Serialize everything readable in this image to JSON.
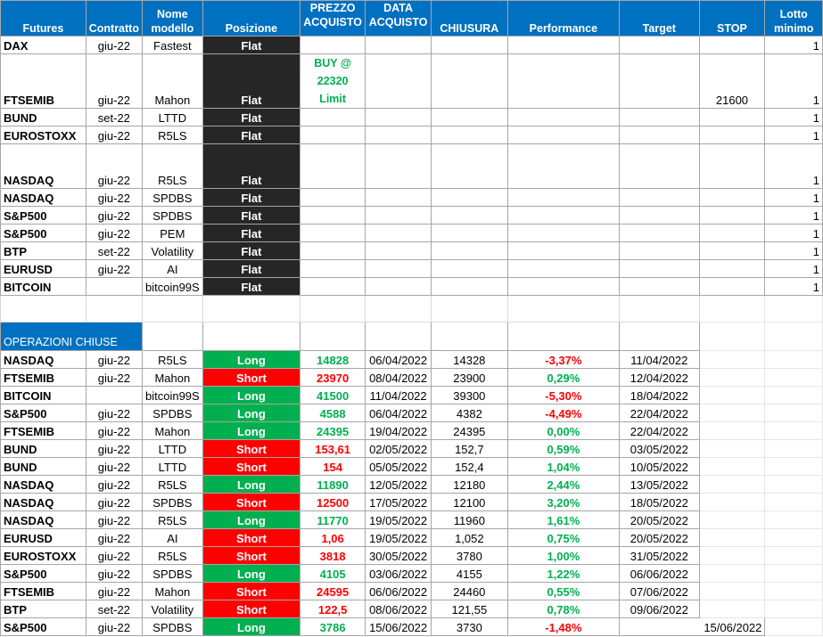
{
  "header": {
    "futures": "Futures",
    "contratto": "Contratto",
    "nome_modello": "Nome modello",
    "posizione": "Posizione",
    "prezzo_acquisto": "PREZZO ACQUISTO",
    "data_acquisto": "DATA ACQUISTO",
    "chiusura": "CHIUSURA",
    "performance": "Performance",
    "target": "Target",
    "stop": "STOP",
    "lotto_minimo": "Lotto minimo"
  },
  "open_positions": [
    {
      "future": "DAX",
      "contratto": "giu-22",
      "modello": "Fastest",
      "posizione": "Flat",
      "prezzo": "",
      "stop": "",
      "lotto": "1"
    },
    {
      "future": "FTSEMIB",
      "contratto": "giu-22",
      "modello": "Mahon",
      "posizione": "Flat",
      "prezzo": "BUY @ 22320 Limit",
      "stop": "21600",
      "lotto": "1"
    },
    {
      "future": "BUND",
      "contratto": "set-22",
      "modello": "LTTD",
      "posizione": "Flat",
      "prezzo": "",
      "stop": "",
      "lotto": "1"
    },
    {
      "future": "EUROSTOXX",
      "contratto": "giu-22",
      "modello": "R5LS",
      "posizione": "Flat",
      "prezzo": "",
      "stop": "",
      "lotto": "1"
    },
    {
      "future": "NASDAQ",
      "contratto": "giu-22",
      "modello": "R5LS",
      "posizione": "Flat",
      "prezzo": "",
      "stop": "",
      "lotto": "1"
    },
    {
      "future": "NASDAQ",
      "contratto": "giu-22",
      "modello": "SPDBS",
      "posizione": "Flat",
      "prezzo": "",
      "stop": "",
      "lotto": "1"
    },
    {
      "future": "S&P500",
      "contratto": "giu-22",
      "modello": "SPDBS",
      "posizione": "Flat",
      "prezzo": "",
      "stop": "",
      "lotto": "1"
    },
    {
      "future": "S&P500",
      "contratto": "giu-22",
      "modello": "PEM",
      "posizione": "Flat",
      "prezzo": "",
      "stop": "",
      "lotto": "1"
    },
    {
      "future": "BTP",
      "contratto": "set-22",
      "modello": "Volatility",
      "posizione": "Flat",
      "prezzo": "",
      "stop": "",
      "lotto": "1"
    },
    {
      "future": "EURUSD",
      "contratto": "giu-22",
      "modello": "AI",
      "posizione": "Flat",
      "prezzo": "",
      "stop": "",
      "lotto": "1"
    },
    {
      "future": "BITCOIN",
      "contratto": "",
      "modello": "bitcoin99S",
      "posizione": "Flat",
      "prezzo": "",
      "stop": "",
      "lotto": "1"
    }
  ],
  "closed_section": {
    "title": "OPERAZIONI CHIUSE"
  },
  "closed_operations": [
    {
      "future": "NASDAQ",
      "contratto": "giu-22",
      "modello": "R5LS",
      "posizione": "Long",
      "prezzo": "14828",
      "data": "06/04/2022",
      "chiusura": "14328",
      "performance": "-3,37%",
      "target": "11/04/2022"
    },
    {
      "future": "FTSEMIB",
      "contratto": "giu-22",
      "modello": "Mahon",
      "posizione": "Short",
      "prezzo": "23970",
      "data": "08/04/2022",
      "chiusura": "23900",
      "performance": "0,29%",
      "target": "12/04/2022"
    },
    {
      "future": "BITCOIN",
      "contratto": "",
      "modello": "bitcoin99S",
      "posizione": "Long",
      "prezzo": "41500",
      "data": "11/04/2022",
      "chiusura": "39300",
      "performance": "-5,30%",
      "target": "18/04/2022"
    },
    {
      "future": "S&P500",
      "contratto": "giu-22",
      "modello": "SPDBS",
      "posizione": "Long",
      "prezzo": "4588",
      "data": "06/04/2022",
      "chiusura": "4382",
      "performance": "-4,49%",
      "target": "22/04/2022"
    },
    {
      "future": "FTSEMIB",
      "contratto": "giu-22",
      "modello": "Mahon",
      "posizione": "Long",
      "prezzo": "24395",
      "data": "19/04/2022",
      "chiusura": "24395",
      "performance": "0,00%",
      "target": "22/04/2022"
    },
    {
      "future": "BUND",
      "contratto": "giu-22",
      "modello": "LTTD",
      "posizione": "Short",
      "prezzo": "153,61",
      "data": "02/05/2022",
      "chiusura": "152,7",
      "performance": "0,59%",
      "target": "03/05/2022"
    },
    {
      "future": "BUND",
      "contratto": "giu-22",
      "modello": "LTTD",
      "posizione": "Short",
      "prezzo": "154",
      "data": "05/05/2022",
      "chiusura": "152,4",
      "performance": "1,04%",
      "target": "10/05/2022"
    },
    {
      "future": "NASDAQ",
      "contratto": "giu-22",
      "modello": "R5LS",
      "posizione": "Long",
      "prezzo": "11890",
      "data": "12/05/2022",
      "chiusura": "12180",
      "performance": "2,44%",
      "target": "13/05/2022"
    },
    {
      "future": "NASDAQ",
      "contratto": "giu-22",
      "modello": "SPDBS",
      "posizione": "Short",
      "prezzo": "12500",
      "data": "17/05/2022",
      "chiusura": "12100",
      "performance": "3,20%",
      "target": "18/05/2022"
    },
    {
      "future": "NASDAQ",
      "contratto": "giu-22",
      "modello": "R5LS",
      "posizione": "Long",
      "prezzo": "11770",
      "data": "19/05/2022",
      "chiusura": "11960",
      "performance": "1,61%",
      "target": "20/05/2022"
    },
    {
      "future": "EURUSD",
      "contratto": "giu-22",
      "modello": "AI",
      "posizione": "Short",
      "prezzo": "1,06",
      "data": "19/05/2022",
      "chiusura": "1,052",
      "performance": "0,75%",
      "target": "20/05/2022"
    },
    {
      "future": "EUROSTOXX",
      "contratto": "giu-22",
      "modello": "R5LS",
      "posizione": "Short",
      "prezzo": "3818",
      "data": "30/05/2022",
      "chiusura": "3780",
      "performance": "1,00%",
      "target": "31/05/2022"
    },
    {
      "future": "S&P500",
      "contratto": "giu-22",
      "modello": "SPDBS",
      "posizione": "Long",
      "prezzo": "4105",
      "data": "03/06/2022",
      "chiusura": "4155",
      "performance": "1,22%",
      "target": "06/06/2022"
    },
    {
      "future": "FTSEMIB",
      "contratto": "giu-22",
      "modello": "Mahon",
      "posizione": "Short",
      "prezzo": "24595",
      "data": "06/06/2022",
      "chiusura": "24460",
      "performance": "0,55%",
      "target": "07/06/2022"
    },
    {
      "future": "BTP",
      "contratto": "set-22",
      "modello": "Volatility",
      "posizione": "Short",
      "prezzo": "122,5",
      "data": "08/06/2022",
      "chiusura": "121,55",
      "performance": "0,78%",
      "target": "09/06/2022"
    },
    {
      "future": "S&P500",
      "contratto": "giu-22",
      "modello": "SPDBS",
      "posizione": "Long",
      "prezzo": "3786",
      "data": "15/06/2022",
      "chiusura": "3730",
      "performance": "-1,48%",
      "target": "15/06/2022"
    }
  ],
  "colors": {
    "header_bg": "#0070c0",
    "flat_bg": "#262626",
    "long_bg": "#00b050",
    "short_bg": "#ff0000",
    "positive_text": "#00b050",
    "negative_text": "#ff0000"
  }
}
